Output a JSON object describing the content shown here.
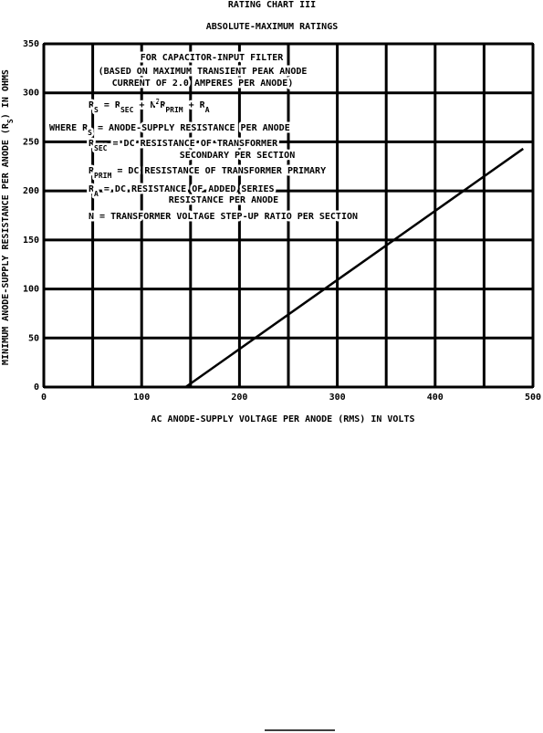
{
  "chart_data": {
    "type": "line",
    "title": "RATING CHART III",
    "subtitle": "ABSOLUTE-MAXIMUM RATINGS",
    "x_label": "AC ANODE-SUPPLY VOLTAGE PER ANODE (RMS) IN VOLTS",
    "y_label": [
      {
        "text": "MINIMUM ANODE-SUPPLY RESISTANCE PER ANODE (R"
      },
      {
        "text": "S",
        "shift": "sub"
      },
      {
        "text": ") IN OHMS"
      }
    ],
    "x": [
      145,
      490
    ],
    "series": [
      {
        "color": "#000000",
        "values": [
          0,
          243
        ]
      }
    ],
    "xlim": [
      0,
      500
    ],
    "xticks": [
      0,
      100,
      200,
      300,
      400,
      500
    ],
    "x_minor_ticks": [
      50,
      150,
      250,
      350,
      450
    ],
    "ylim": [
      0,
      350
    ],
    "yticks": [
      0,
      50,
      100,
      150,
      200,
      250,
      300,
      350
    ],
    "grid": true,
    "annotations": [
      [
        {
          "text": "FOR CAPACITOR-INPUT FILTER"
        }
      ],
      [
        {
          "text": "(BASED ON MAXIMUM TRANSIENT PEAK ANODE"
        }
      ],
      [
        {
          "text": "CURRENT OF 2.0 AMPERES PER ANODE)"
        }
      ],
      [
        {
          "text": "R"
        },
        {
          "text": "S",
          "shift": "sub"
        },
        {
          "text": " = R"
        },
        {
          "text": "SEC",
          "shift": "sub"
        },
        {
          "text": " + N"
        },
        {
          "text": "2",
          "shift": "super"
        },
        {
          "text": "R"
        },
        {
          "text": "PRIM",
          "shift": "sub"
        },
        {
          "text": " + R"
        },
        {
          "text": "A",
          "shift": "sub"
        }
      ],
      [
        {
          "text": "WHERE R"
        },
        {
          "text": "S",
          "shift": "sub"
        },
        {
          "text": " = ANODE-SUPPLY RESISTANCE PER ANODE"
        }
      ],
      [
        {
          "text": "R"
        },
        {
          "text": "SEC",
          "shift": "sub"
        },
        {
          "text": " = DC RESISTANCE OF TRANSFORMER"
        }
      ],
      [
        {
          "text": "SECONDARY PER SECTION"
        }
      ],
      [
        {
          "text": "R"
        },
        {
          "text": "PRIM",
          "shift": "sub"
        },
        {
          "text": " = DC RESISTANCE OF TRANSFORMER PRIMARY"
        }
      ],
      [
        {
          "text": "R"
        },
        {
          "text": "A",
          "shift": "sub"
        },
        {
          "text": " = DC RESISTANCE OF ADDED SERIES"
        }
      ],
      [
        {
          "text": "RESISTANCE PER ANODE"
        }
      ],
      [
        {
          "text": "N = TRANSFORMER VOLTAGE STEP-UP RATIO PER SECTION"
        }
      ]
    ]
  }
}
